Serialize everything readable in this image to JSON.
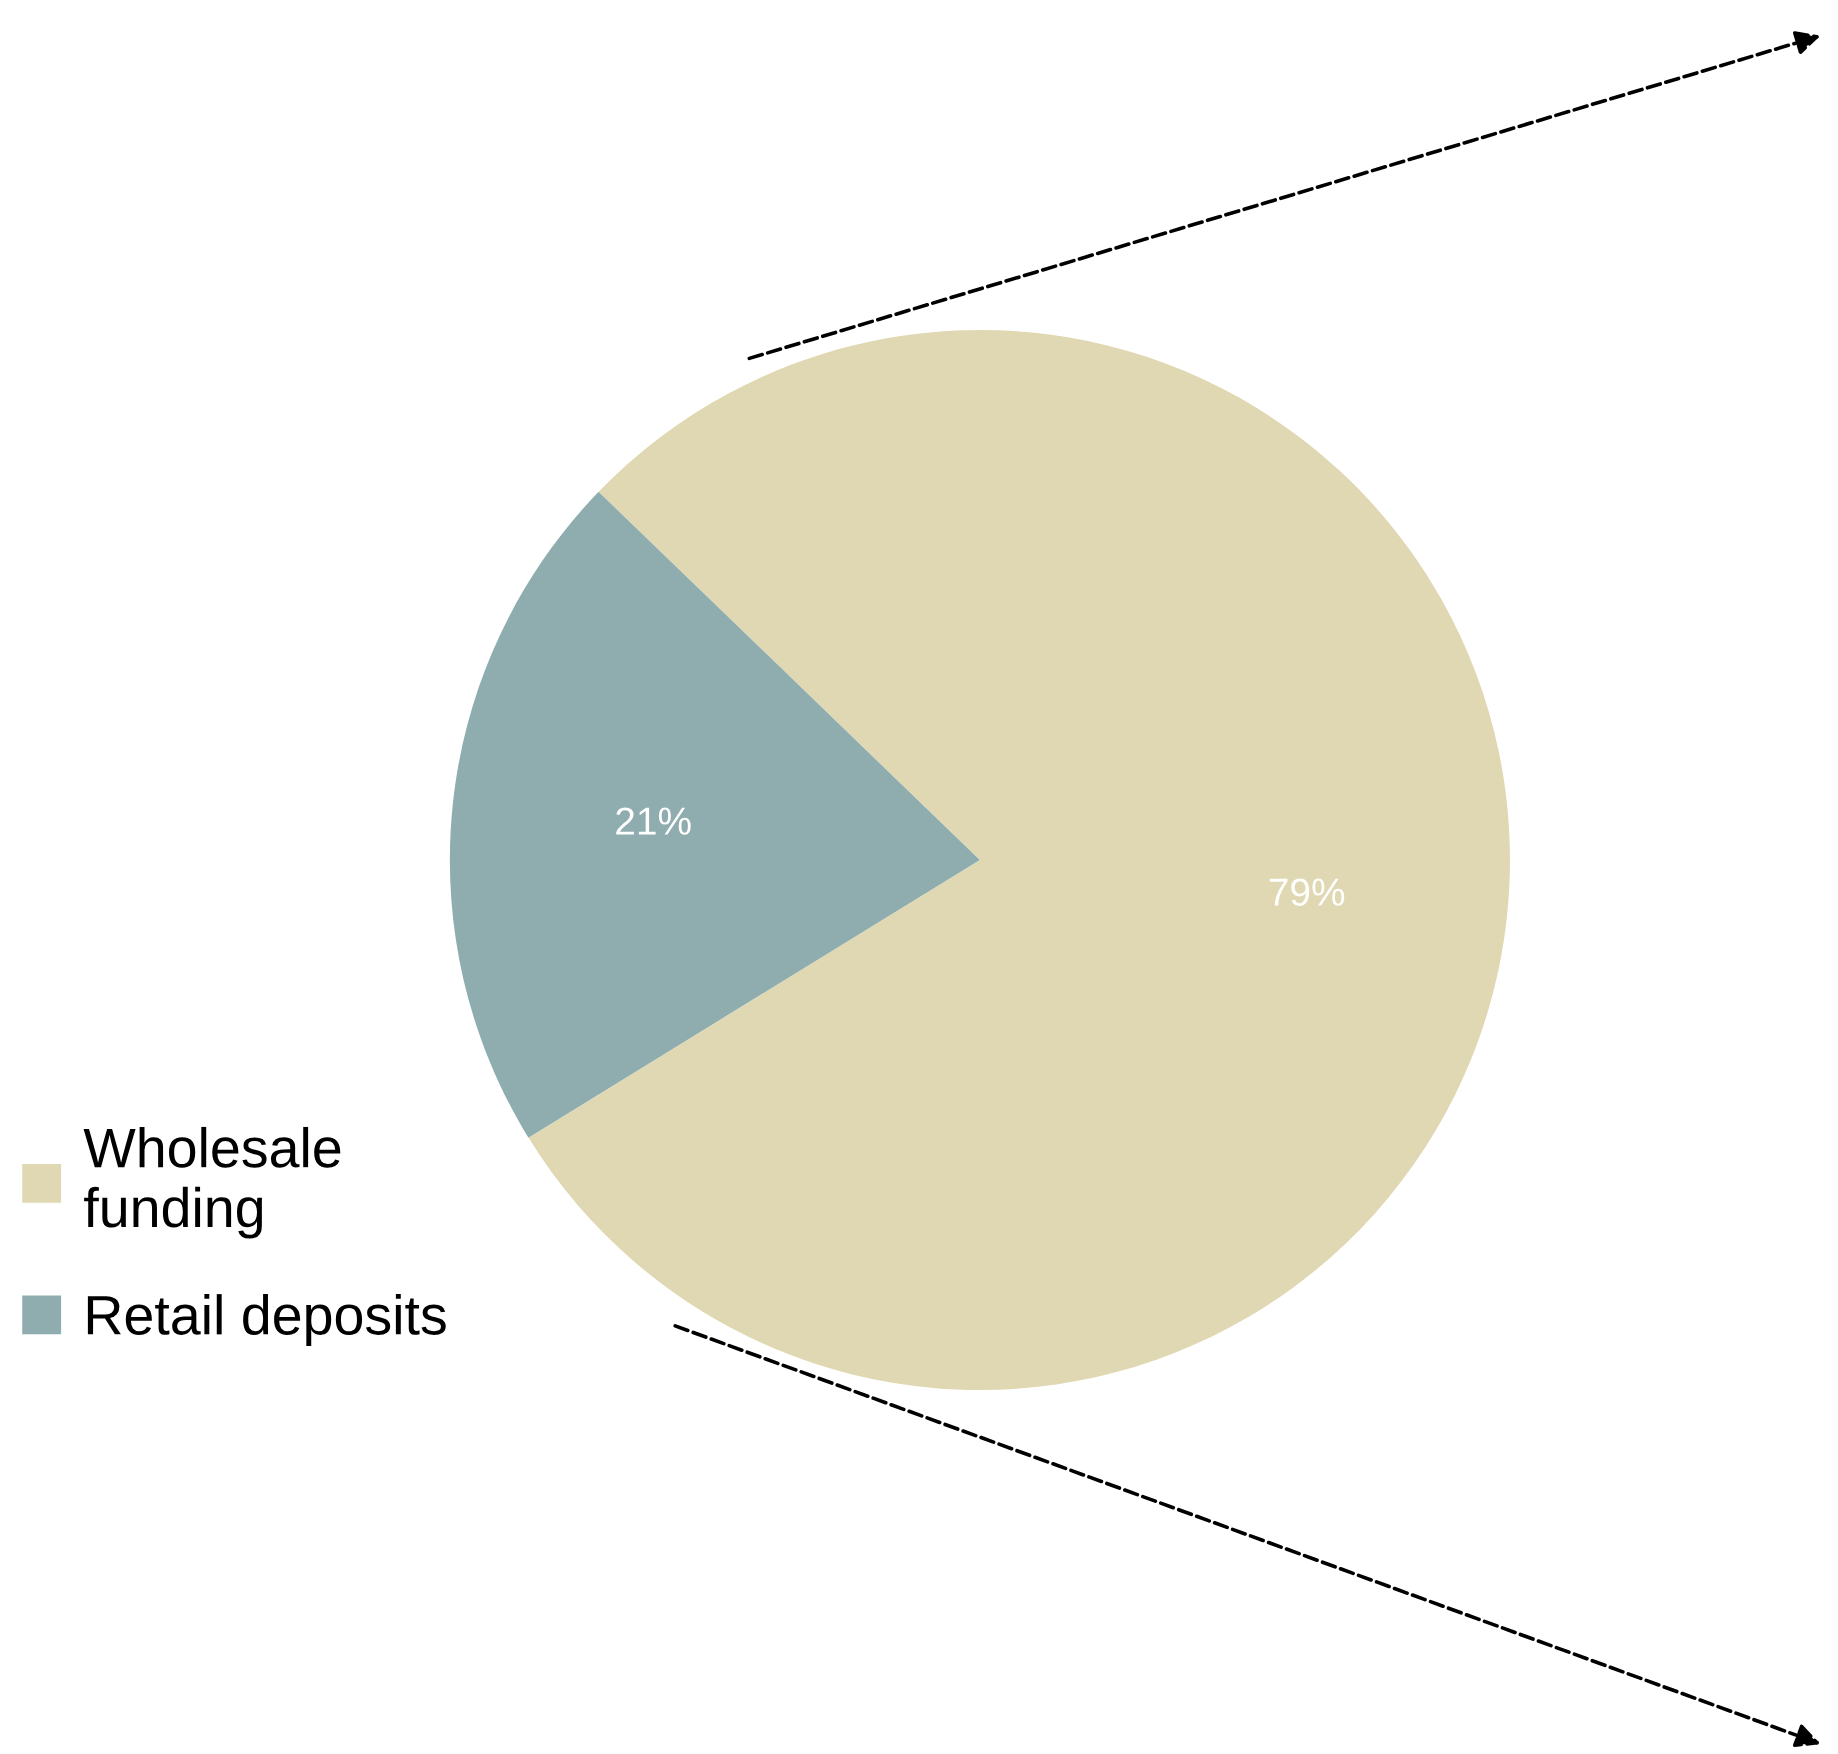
{
  "chart_data": {
    "type": "pie",
    "categories": [
      "Wholesale funding",
      "Retail deposits"
    ],
    "values": [
      79,
      21
    ],
    "colors": [
      "#e0d8b2",
      "#8fadae"
    ],
    "value_labels": [
      "79%",
      "21%"
    ],
    "legend": "bottom left"
  }
}
